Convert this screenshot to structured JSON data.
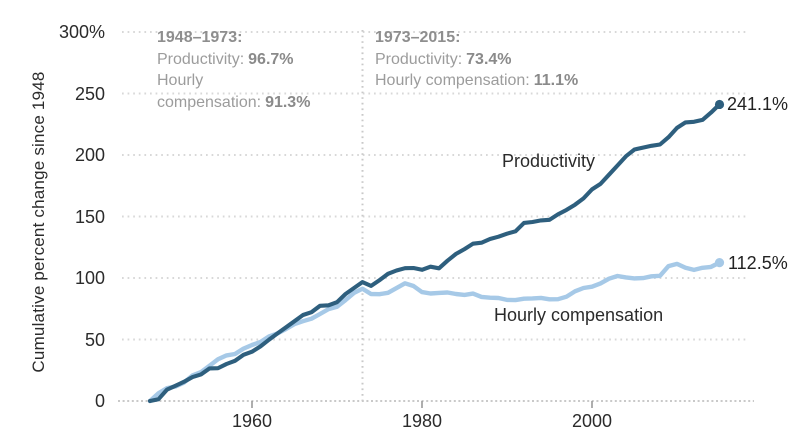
{
  "figure": {
    "ylabel": "Cumulative percent change since 1948",
    "series_labels": {
      "productivity": "Productivity",
      "compensation": "Hourly compensation"
    },
    "end_labels": {
      "productivity": "241.1%",
      "compensation": "112.5%"
    },
    "annotations": {
      "period1": {
        "title": "1948–1973:",
        "productivity_label": "Productivity:",
        "productivity_value": "96.7%",
        "compensation_word1": "Hourly",
        "compensation_word2": "compensation:",
        "compensation_value": "91.3%"
      },
      "period2": {
        "title": "1973–2015:",
        "productivity_label": "Productivity:",
        "productivity_value": "73.4%",
        "compensation_label": "Hourly compensation:",
        "compensation_value": "11.1%"
      }
    },
    "colors": {
      "productivity_line": "#2e5f7e",
      "compensation_line": "#a6c9e7",
      "gridline": "#d8d8d8",
      "baseline": "#c9c9c9",
      "reference_line": "#c9c9c9",
      "tick": "#9a9a9a",
      "axis_text": "#2b2b2b",
      "annotation_text": "#9c9c9c"
    }
  },
  "chart_data": {
    "type": "line",
    "title": "",
    "xlabel": "",
    "ylabel": "Cumulative percent change since 1948",
    "ylim": [
      0,
      300
    ],
    "xlim": [
      1948,
      2015
    ],
    "y_ticks": [
      0,
      50,
      100,
      150,
      200,
      250,
      300
    ],
    "y_tick_labels": [
      "0",
      "50",
      "100",
      "150",
      "200",
      "250",
      "300%"
    ],
    "x_ticks": [
      1960,
      1980,
      2000
    ],
    "x_tick_labels": [
      "1960",
      "1980",
      "2000"
    ],
    "grid": "horizontal-dotted",
    "reference_line_x": 1973,
    "legend_position": "inline-labels",
    "x": [
      1948,
      1949,
      1950,
      1951,
      1952,
      1953,
      1954,
      1955,
      1956,
      1957,
      1958,
      1959,
      1960,
      1961,
      1962,
      1963,
      1964,
      1965,
      1966,
      1967,
      1968,
      1969,
      1970,
      1971,
      1972,
      1973,
      1974,
      1975,
      1976,
      1977,
      1978,
      1979,
      1980,
      1981,
      1982,
      1983,
      1984,
      1985,
      1986,
      1987,
      1988,
      1989,
      1990,
      1991,
      1992,
      1993,
      1994,
      1995,
      1996,
      1997,
      1998,
      1999,
      2000,
      2001,
      2002,
      2003,
      2004,
      2005,
      2006,
      2007,
      2008,
      2009,
      2010,
      2011,
      2012,
      2013,
      2014,
      2015
    ],
    "series": [
      {
        "name": "Productivity",
        "color": "#2e5f7e",
        "end_value": 241.1,
        "values": [
          0.0,
          1.5,
          9.3,
          12.4,
          15.6,
          19.4,
          21.6,
          26.5,
          26.7,
          30.1,
          32.7,
          37.6,
          40.1,
          44.4,
          49.8,
          55.0,
          59.9,
          64.9,
          69.9,
          72.2,
          77.4,
          77.8,
          80.3,
          87.0,
          91.9,
          96.7,
          93.6,
          98.2,
          103.4,
          106.1,
          108.0,
          108.1,
          106.7,
          109.2,
          107.9,
          114.1,
          119.6,
          123.5,
          127.9,
          128.7,
          131.7,
          133.6,
          136.0,
          138.0,
          144.8,
          145.5,
          146.8,
          147.3,
          151.8,
          155.4,
          159.6,
          164.7,
          172.0,
          176.5,
          184.0,
          191.5,
          199.0,
          204.5,
          206.0,
          207.5,
          208.5,
          214.5,
          222.0,
          226.5,
          227.0,
          228.5,
          234.5,
          241.1
        ]
      },
      {
        "name": "Hourly compensation",
        "color": "#a6c9e7",
        "end_value": 112.5,
        "values": [
          0.0,
          6.3,
          10.5,
          11.8,
          15.0,
          20.8,
          23.5,
          28.7,
          33.9,
          37.1,
          38.2,
          42.6,
          45.5,
          48.0,
          52.5,
          55.0,
          58.5,
          62.5,
          64.9,
          66.9,
          70.7,
          74.7,
          76.6,
          82.0,
          87.9,
          91.3,
          87.0,
          86.8,
          88.0,
          91.8,
          95.7,
          93.5,
          88.5,
          87.4,
          87.9,
          88.2,
          87.0,
          86.3,
          87.3,
          84.6,
          84.0,
          83.7,
          82.2,
          82.0,
          83.2,
          83.4,
          83.8,
          82.7,
          82.8,
          84.8,
          89.2,
          91.9,
          92.9,
          95.6,
          99.4,
          101.6,
          100.5,
          99.7,
          99.9,
          101.4,
          101.8,
          109.7,
          111.5,
          108.3,
          106.6,
          108.3,
          109.0,
          112.5
        ]
      }
    ]
  }
}
